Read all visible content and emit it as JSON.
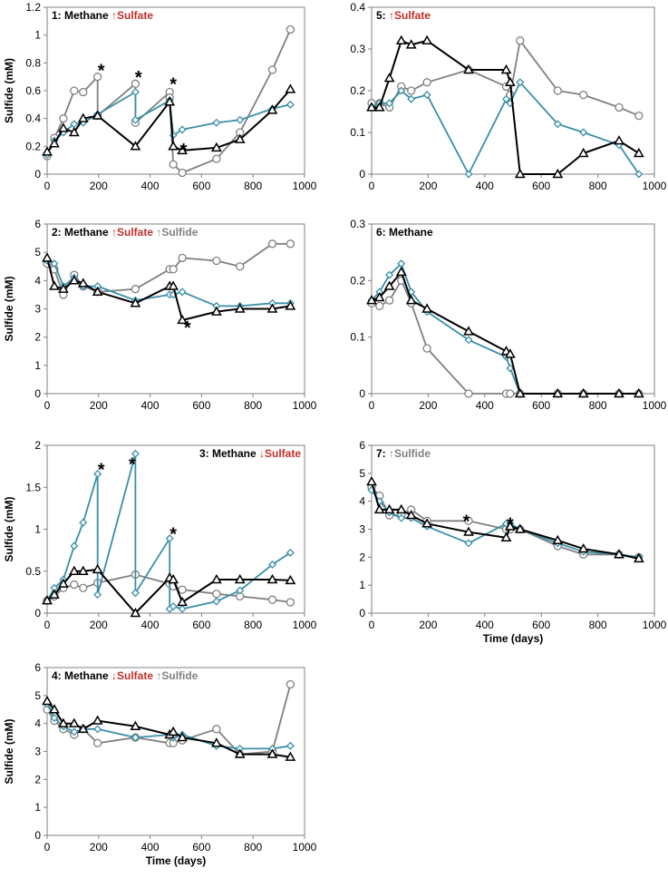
{
  "colors": {
    "black": "#000000",
    "teal": "#3a8fa8",
    "gray": "#808080",
    "red": "#c0302a",
    "axis": "#808080"
  },
  "chart_data": [
    {
      "type": "line",
      "id": "p1",
      "ylabel": "Sulfide (mM)",
      "xlabel": "",
      "xlim": [
        0,
        1000
      ],
      "xticks": [
        0,
        200,
        400,
        600,
        800,
        1000
      ],
      "ylim": [
        0,
        1.2
      ],
      "yticks": [
        0,
        0.2,
        0.4,
        0.6,
        0.8,
        1.0,
        1.2
      ],
      "ytick_labels": [
        "0",
        "0.2",
        "0.4",
        "0.6",
        "0.8",
        "1",
        "1.2"
      ],
      "title_parts": [
        {
          "text": "1: Methane ",
          "color": "black"
        },
        {
          "text": "↑Sulfate",
          "color": "red"
        }
      ],
      "series": [
        {
          "name": "black-triangle",
          "color": "black",
          "marker": "triangle",
          "x": [
            0,
            28,
            63,
            105,
            140,
            196,
            343,
            476,
            490,
            525,
            658,
            749,
            875,
            945
          ],
          "y": [
            0.16,
            0.22,
            0.33,
            0.3,
            0.4,
            0.42,
            0.2,
            0.52,
            0.2,
            0.17,
            0.19,
            0.25,
            0.46,
            0.61
          ]
        },
        {
          "name": "teal-diamond",
          "color": "teal",
          "marker": "diamond",
          "x": [
            0,
            28,
            63,
            105,
            140,
            196,
            343,
            343,
            476,
            490,
            525,
            658,
            749,
            875,
            945
          ],
          "y": [
            0.14,
            0.24,
            0.3,
            0.36,
            0.37,
            0.43,
            0.59,
            0.39,
            0.53,
            0.28,
            0.32,
            0.37,
            0.39,
            0.47,
            0.5
          ]
        },
        {
          "name": "gray-circle",
          "color": "gray",
          "marker": "circle",
          "x": [
            0,
            28,
            63,
            105,
            140,
            196,
            196,
            343,
            343,
            476,
            476,
            490,
            525,
            658,
            749,
            875,
            945
          ],
          "y": [
            0.13,
            0.26,
            0.4,
            0.6,
            0.59,
            0.7,
            0.42,
            0.65,
            0.37,
            0.59,
            0.55,
            0.07,
            0.01,
            0.11,
            0.3,
            0.75,
            1.04
          ]
        }
      ],
      "stars": [
        {
          "x": 210,
          "y": 0.78
        },
        {
          "x": 355,
          "y": 0.73
        },
        {
          "x": 490,
          "y": 0.68
        },
        {
          "x": 530,
          "y": 0.21
        }
      ]
    },
    {
      "type": "line",
      "id": "p5",
      "ylabel": "",
      "xlabel": "",
      "xlim": [
        0,
        1000
      ],
      "xticks": [
        0,
        200,
        400,
        600,
        800,
        1000
      ],
      "ylim": [
        0,
        0.4
      ],
      "yticks": [
        0,
        0.1,
        0.2,
        0.3,
        0.4
      ],
      "ytick_labels": [
        "0",
        "0.1",
        "0.2",
        "0.3",
        "0.4"
      ],
      "title_parts": [
        {
          "text": "5: ",
          "color": "black"
        },
        {
          "text": "↑Sulfate",
          "color": "red"
        }
      ],
      "series": [
        {
          "name": "black-triangle",
          "color": "black",
          "marker": "triangle",
          "x": [
            0,
            28,
            63,
            105,
            140,
            196,
            343,
            476,
            490,
            525,
            658,
            749,
            875,
            945
          ],
          "y": [
            0.16,
            0.16,
            0.23,
            0.32,
            0.31,
            0.32,
            0.25,
            0.25,
            0.22,
            0.0,
            0.0,
            0.05,
            0.08,
            0.05
          ]
        },
        {
          "name": "teal-diamond",
          "color": "teal",
          "marker": "diamond",
          "x": [
            0,
            28,
            63,
            105,
            140,
            196,
            343,
            476,
            490,
            525,
            658,
            749,
            875,
            945
          ],
          "y": [
            0.16,
            0.17,
            0.17,
            0.2,
            0.18,
            0.19,
            0.0,
            0.18,
            0.17,
            0.22,
            0.12,
            0.1,
            0.07,
            0.0
          ]
        },
        {
          "name": "gray-circle",
          "color": "gray",
          "marker": "circle",
          "x": [
            0,
            28,
            63,
            105,
            140,
            196,
            343,
            476,
            490,
            525,
            658,
            749,
            875,
            945
          ],
          "y": [
            0.17,
            0.17,
            0.16,
            0.21,
            0.2,
            0.22,
            0.25,
            0.21,
            0.19,
            0.32,
            0.2,
            0.19,
            0.16,
            0.14
          ]
        }
      ],
      "stars": []
    },
    {
      "type": "line",
      "id": "p2",
      "ylabel": "Sulfide (mM)",
      "xlabel": "",
      "xlim": [
        0,
        1000
      ],
      "xticks": [
        0,
        200,
        400,
        600,
        800,
        1000
      ],
      "ylim": [
        0,
        6
      ],
      "yticks": [
        0,
        1,
        2,
        3,
        4,
        5,
        6
      ],
      "ytick_labels": [
        "0",
        "1",
        "2",
        "3",
        "4",
        "5",
        "6"
      ],
      "title_parts": [
        {
          "text": "2: Methane ",
          "color": "black"
        },
        {
          "text": "↑Sulfate ",
          "color": "red"
        },
        {
          "text": "↑Sulfide",
          "color": "gray"
        }
      ],
      "series": [
        {
          "name": "black-triangle",
          "color": "black",
          "marker": "triangle",
          "x": [
            0,
            28,
            63,
            105,
            140,
            196,
            343,
            476,
            490,
            525,
            658,
            749,
            875,
            945
          ],
          "y": [
            4.8,
            3.8,
            3.7,
            4.0,
            3.9,
            3.6,
            3.2,
            3.8,
            3.8,
            2.6,
            2.9,
            3.0,
            3.0,
            3.1
          ]
        },
        {
          "name": "teal-diamond",
          "color": "teal",
          "marker": "diamond",
          "x": [
            0,
            28,
            63,
            105,
            140,
            196,
            343,
            476,
            490,
            525,
            658,
            749,
            875,
            945
          ],
          "y": [
            4.7,
            4.6,
            3.8,
            4.1,
            3.8,
            3.8,
            3.3,
            3.5,
            3.5,
            3.6,
            3.1,
            3.1,
            3.2,
            3.2
          ]
        },
        {
          "name": "gray-circle",
          "color": "gray",
          "marker": "circle",
          "x": [
            0,
            28,
            63,
            105,
            140,
            196,
            343,
            476,
            490,
            525,
            658,
            749,
            875,
            945
          ],
          "y": [
            4.6,
            4.4,
            3.5,
            4.2,
            3.8,
            3.6,
            3.7,
            4.4,
            4.4,
            4.8,
            4.7,
            4.5,
            5.3,
            5.3
          ]
        }
      ],
      "stars": [
        {
          "x": 545,
          "y": 2.5
        }
      ]
    },
    {
      "type": "line",
      "id": "p6",
      "ylabel": "",
      "xlabel": "",
      "xlim": [
        0,
        1000
      ],
      "xticks": [
        0,
        200,
        400,
        600,
        800,
        1000
      ],
      "ylim": [
        0,
        0.3
      ],
      "yticks": [
        0,
        0.1,
        0.2,
        0.3
      ],
      "ytick_labels": [
        "0",
        "0.1",
        "0.2",
        "0.3"
      ],
      "title_parts": [
        {
          "text": "6: Methane",
          "color": "black"
        }
      ],
      "series": [
        {
          "name": "black-triangle",
          "color": "black",
          "marker": "triangle",
          "x": [
            0,
            28,
            63,
            105,
            140,
            196,
            343,
            476,
            490,
            525,
            658,
            749,
            875,
            945
          ],
          "y": [
            0.165,
            0.17,
            0.19,
            0.215,
            0.165,
            0.15,
            0.11,
            0.075,
            0.07,
            0.0,
            0.0,
            0.0,
            0.0,
            0.0
          ]
        },
        {
          "name": "teal-diamond",
          "color": "teal",
          "marker": "diamond",
          "x": [
            0,
            28,
            63,
            105,
            140,
            196,
            343,
            476,
            490,
            525,
            658,
            749,
            875,
            945
          ],
          "y": [
            0.165,
            0.18,
            0.21,
            0.23,
            0.18,
            0.145,
            0.095,
            0.065,
            0.045,
            0.0,
            0.0,
            0.0,
            0.0,
            0.0
          ]
        },
        {
          "name": "gray-circle",
          "color": "gray",
          "marker": "circle",
          "x": [
            0,
            28,
            63,
            105,
            140,
            196,
            343,
            476,
            490,
            525,
            658,
            749,
            875,
            945
          ],
          "y": [
            0.16,
            0.155,
            0.165,
            0.2,
            0.16,
            0.08,
            0.0,
            0.0,
            0.0,
            0.0,
            0.0,
            0.0,
            0.0,
            0.0
          ]
        }
      ],
      "stars": []
    },
    {
      "type": "line",
      "id": "p3",
      "ylabel": "Sulfide (mM)",
      "xlabel": "",
      "xlim": [
        0,
        1000
      ],
      "xticks": [
        0,
        200,
        400,
        600,
        800,
        1000
      ],
      "ylim": [
        0,
        2
      ],
      "yticks": [
        0,
        0.5,
        1,
        1.5,
        2
      ],
      "ytick_labels": [
        "0",
        "0.5",
        "1",
        "1.5",
        "2"
      ],
      "title_parts": [
        {
          "text": "3: Methane ",
          "color": "black"
        },
        {
          "text": "↓Sulfate",
          "color": "red"
        }
      ],
      "series": [
        {
          "name": "black-triangle",
          "color": "black",
          "marker": "triangle",
          "x": [
            0,
            28,
            63,
            105,
            140,
            196,
            343,
            476,
            490,
            525,
            658,
            749,
            875,
            945
          ],
          "y": [
            0.15,
            0.22,
            0.35,
            0.5,
            0.5,
            0.52,
            0.0,
            0.42,
            0.4,
            0.13,
            0.4,
            0.4,
            0.4,
            0.39
          ]
        },
        {
          "name": "teal-diamond",
          "color": "teal",
          "marker": "diamond",
          "x": [
            0,
            28,
            63,
            105,
            140,
            196,
            196,
            343,
            343,
            476,
            476,
            490,
            525,
            658,
            749,
            875,
            945
          ],
          "y": [
            0.15,
            0.3,
            0.4,
            0.8,
            1.08,
            1.66,
            0.22,
            1.9,
            0.24,
            0.89,
            0.05,
            0.08,
            0.05,
            0.14,
            0.27,
            0.58,
            0.72
          ]
        },
        {
          "name": "gray-circle",
          "color": "gray",
          "marker": "circle",
          "x": [
            0,
            28,
            63,
            105,
            140,
            196,
            343,
            476,
            490,
            525,
            658,
            749,
            875,
            945
          ],
          "y": [
            0.15,
            0.2,
            0.3,
            0.34,
            0.3,
            0.36,
            0.46,
            0.35,
            0.32,
            0.28,
            0.23,
            0.2,
            0.16,
            0.13
          ]
        }
      ],
      "stars": [
        {
          "x": 210,
          "y": 1.77
        },
        {
          "x": 330,
          "y": 1.83
        },
        {
          "x": 490,
          "y": 1.0
        }
      ]
    },
    {
      "type": "line",
      "id": "p7",
      "ylabel": "",
      "xlabel": "Time (days)",
      "xlim": [
        0,
        1000
      ],
      "xticks": [
        0,
        200,
        400,
        600,
        800,
        1000
      ],
      "ylim": [
        0,
        6
      ],
      "yticks": [
        0,
        1,
        2,
        3,
        4,
        5,
        6
      ],
      "ytick_labels": [
        "0",
        "1",
        "2",
        "3",
        "4",
        "5",
        "6"
      ],
      "title_parts": [
        {
          "text": "7: ",
          "color": "black"
        },
        {
          "text": "↑Sulfide",
          "color": "gray"
        }
      ],
      "series": [
        {
          "name": "black-triangle",
          "color": "black",
          "marker": "triangle",
          "x": [
            0,
            28,
            63,
            105,
            140,
            196,
            343,
            476,
            490,
            525,
            658,
            749,
            875,
            945
          ],
          "y": [
            4.7,
            3.7,
            3.7,
            3.7,
            3.5,
            3.2,
            2.9,
            2.7,
            3.1,
            3.0,
            2.6,
            2.3,
            2.1,
            1.95
          ]
        },
        {
          "name": "teal-diamond",
          "color": "teal",
          "marker": "diamond",
          "x": [
            0,
            28,
            63,
            105,
            140,
            196,
            343,
            476,
            490,
            525,
            658,
            749,
            875,
            945
          ],
          "y": [
            4.4,
            4.0,
            3.6,
            3.4,
            3.4,
            3.1,
            2.5,
            3.2,
            3.2,
            3.0,
            2.5,
            2.2,
            2.1,
            2.0
          ]
        },
        {
          "name": "gray-circle",
          "color": "gray",
          "marker": "circle",
          "x": [
            0,
            28,
            63,
            105,
            140,
            196,
            343,
            476,
            490,
            525,
            658,
            749,
            875,
            945
          ],
          "y": [
            4.5,
            4.2,
            3.5,
            3.5,
            3.7,
            3.3,
            3.3,
            3.0,
            3.0,
            3.0,
            2.4,
            2.1,
            2.1,
            2.0
          ]
        }
      ],
      "stars": [
        {
          "x": 335,
          "y": 3.45
        },
        {
          "x": 490,
          "y": 3.35
        }
      ]
    },
    {
      "type": "line",
      "id": "p4",
      "ylabel": "Sulfide (mM)",
      "xlabel": "Time (days)",
      "xlim": [
        0,
        1000
      ],
      "xticks": [
        0,
        200,
        400,
        600,
        800,
        1000
      ],
      "ylim": [
        0,
        6
      ],
      "yticks": [
        0,
        1,
        2,
        3,
        4,
        5,
        6
      ],
      "ytick_labels": [
        "0",
        "1",
        "2",
        "3",
        "4",
        "5",
        "6"
      ],
      "title_parts": [
        {
          "text": "4: Methane ",
          "color": "black"
        },
        {
          "text": "↓Sulfate ",
          "color": "red"
        },
        {
          "text": "↑Sulfide",
          "color": "gray"
        }
      ],
      "series": [
        {
          "name": "black-triangle",
          "color": "black",
          "marker": "triangle",
          "x": [
            0,
            28,
            63,
            105,
            140,
            196,
            343,
            476,
            490,
            525,
            658,
            749,
            875,
            945
          ],
          "y": [
            4.8,
            4.5,
            4.0,
            4.0,
            3.8,
            4.1,
            3.9,
            3.6,
            3.7,
            3.5,
            3.3,
            2.9,
            2.9,
            2.8
          ]
        },
        {
          "name": "teal-diamond",
          "color": "teal",
          "marker": "diamond",
          "x": [
            0,
            28,
            63,
            105,
            140,
            196,
            343,
            476,
            490,
            525,
            658,
            749,
            875,
            945
          ],
          "y": [
            4.7,
            4.2,
            3.9,
            3.7,
            3.8,
            3.8,
            3.5,
            3.6,
            3.5,
            3.6,
            3.2,
            3.1,
            3.1,
            3.2
          ]
        },
        {
          "name": "gray-circle",
          "color": "gray",
          "marker": "circle",
          "x": [
            0,
            28,
            63,
            105,
            140,
            196,
            343,
            476,
            490,
            525,
            658,
            749,
            875,
            945
          ],
          "y": [
            4.5,
            4.1,
            3.8,
            3.6,
            3.8,
            3.3,
            3.5,
            3.3,
            3.3,
            3.4,
            3.8,
            2.9,
            3.0,
            5.4
          ]
        }
      ],
      "stars": []
    }
  ]
}
